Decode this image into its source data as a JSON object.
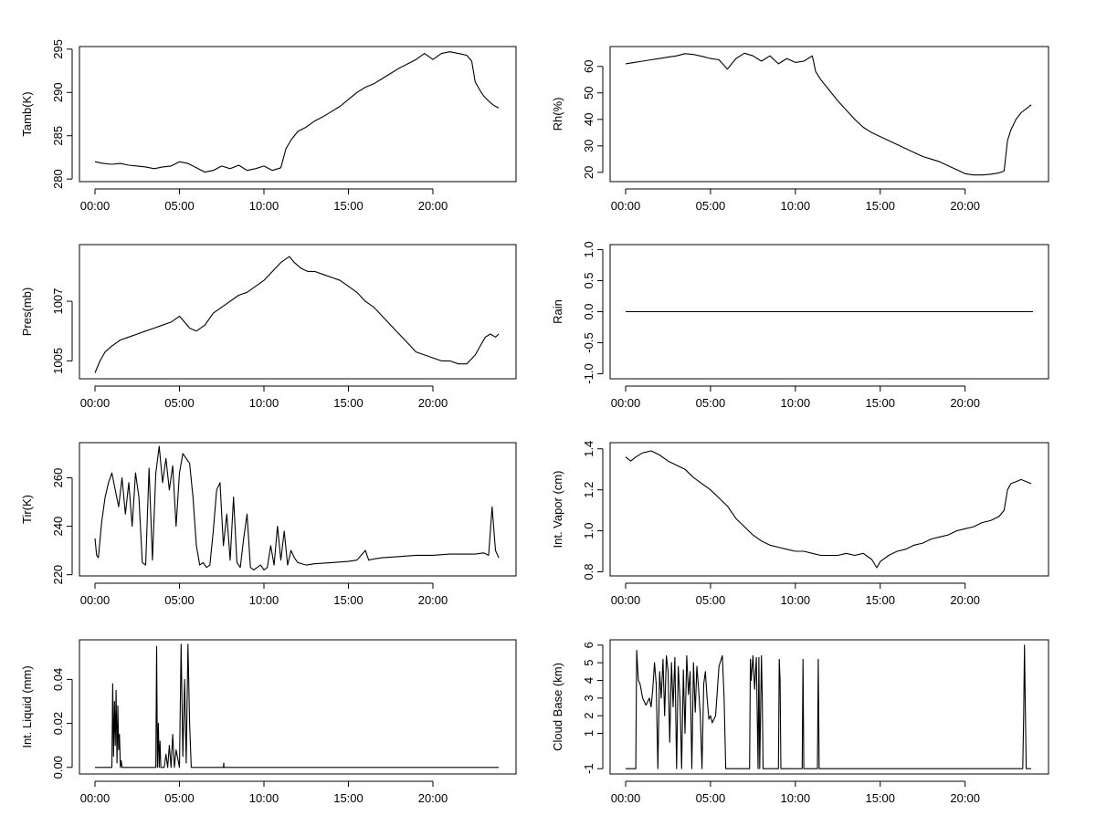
{
  "chart_data": [
    {
      "type": "line",
      "ylabel": "Tamb(K)",
      "xlabel": "",
      "xticks": [
        "00:00",
        "05:00",
        "10:00",
        "15:00",
        "20:00"
      ],
      "yticks": [
        280,
        285,
        290,
        295
      ],
      "ylim": [
        279.7,
        295.3
      ],
      "series": [
        {
          "x": [
            0.0,
            0.5,
            1.0,
            1.5,
            2.0,
            2.5,
            3.0,
            3.5,
            4.0,
            4.5,
            5.0,
            5.5,
            6.0,
            6.5,
            7.0,
            7.5,
            8.0,
            8.5,
            9.0,
            9.5,
            10.0,
            10.5,
            11.0,
            11.3,
            11.6,
            12.0,
            12.5,
            13.0,
            13.5,
            14.0,
            14.5,
            15.0,
            15.5,
            16.0,
            16.5,
            17.0,
            17.5,
            18.0,
            18.5,
            19.0,
            19.5,
            20.0,
            20.5,
            21.0,
            21.5,
            22.0,
            22.3,
            22.5,
            22.8,
            23.0,
            23.3,
            23.6,
            23.9
          ],
          "values": [
            282.0,
            281.8,
            281.7,
            281.8,
            281.6,
            281.5,
            281.4,
            281.2,
            281.4,
            281.5,
            282.0,
            281.8,
            281.3,
            280.8,
            281.0,
            281.5,
            281.2,
            281.6,
            281.0,
            281.2,
            281.5,
            281.0,
            281.3,
            283.5,
            284.5,
            285.5,
            286.0,
            286.7,
            287.2,
            287.8,
            288.4,
            289.2,
            290.0,
            290.6,
            291.0,
            291.6,
            292.2,
            292.8,
            293.3,
            293.8,
            294.5,
            293.8,
            294.5,
            294.7,
            294.5,
            294.3,
            293.6,
            291.2,
            290.2,
            289.6,
            289.0,
            288.5,
            288.2
          ]
        }
      ]
    },
    {
      "type": "line",
      "ylabel": "Rh(%)",
      "xlabel": "",
      "xticks": [
        "00:00",
        "05:00",
        "10:00",
        "15:00",
        "20:00"
      ],
      "yticks": [
        20,
        30,
        40,
        50,
        60
      ],
      "ylim": [
        16.5,
        67.5
      ],
      "series": [
        {
          "x": [
            0.0,
            0.5,
            1.0,
            1.5,
            2.0,
            2.5,
            3.0,
            3.5,
            4.0,
            4.5,
            5.0,
            5.5,
            6.0,
            6.5,
            7.0,
            7.5,
            8.0,
            8.5,
            9.0,
            9.5,
            10.0,
            10.5,
            11.0,
            11.2,
            11.5,
            12.0,
            12.5,
            13.0,
            13.5,
            14.0,
            14.5,
            15.0,
            15.5,
            16.0,
            16.5,
            17.0,
            17.5,
            18.0,
            18.5,
            19.0,
            19.5,
            20.0,
            20.5,
            21.0,
            21.5,
            22.0,
            22.3,
            22.5,
            22.7,
            23.0,
            23.3,
            23.6,
            23.9
          ],
          "values": [
            61.0,
            61.5,
            62.0,
            62.5,
            63.0,
            63.5,
            64.0,
            64.8,
            64.5,
            63.8,
            63.0,
            62.5,
            59.0,
            63.0,
            65.0,
            64.0,
            62.0,
            64.0,
            61.0,
            63.0,
            61.5,
            62.0,
            64.0,
            58.0,
            55.0,
            51.0,
            47.0,
            43.5,
            40.0,
            37.0,
            35.0,
            33.5,
            32.0,
            30.5,
            29.0,
            27.5,
            26.0,
            25.0,
            24.0,
            22.5,
            21.0,
            19.5,
            19.0,
            19.0,
            19.3,
            19.8,
            20.5,
            32.0,
            36.0,
            40.0,
            42.5,
            44.0,
            45.5
          ]
        }
      ]
    },
    {
      "type": "line",
      "ylabel": "Pres(mb)",
      "xlabel": "",
      "xticks": [
        "00:00",
        "05:00",
        "10:00",
        "15:00",
        "20:00"
      ],
      "yticks": [
        1005,
        1007
      ],
      "ylim": [
        1004.4,
        1008.9
      ],
      "series": [
        {
          "x": [
            0.0,
            0.3,
            0.6,
            1.0,
            1.5,
            2.0,
            2.5,
            3.0,
            3.5,
            4.0,
            4.5,
            5.0,
            5.3,
            5.6,
            6.0,
            6.5,
            7.0,
            7.5,
            8.0,
            8.5,
            9.0,
            9.5,
            10.0,
            10.5,
            11.0,
            11.5,
            11.8,
            12.2,
            12.6,
            13.0,
            13.5,
            14.0,
            14.5,
            15.0,
            15.5,
            16.0,
            16.5,
            17.0,
            17.5,
            18.0,
            18.5,
            19.0,
            19.5,
            20.0,
            20.5,
            21.0,
            21.5,
            22.0,
            22.5,
            22.8,
            23.1,
            23.4,
            23.7,
            23.9
          ],
          "values": [
            1004.6,
            1005.0,
            1005.3,
            1005.5,
            1005.7,
            1005.8,
            1005.9,
            1006.0,
            1006.1,
            1006.2,
            1006.3,
            1006.5,
            1006.3,
            1006.1,
            1006.0,
            1006.2,
            1006.6,
            1006.8,
            1007.0,
            1007.2,
            1007.3,
            1007.5,
            1007.7,
            1008.0,
            1008.3,
            1008.5,
            1008.3,
            1008.1,
            1008.0,
            1008.0,
            1007.9,
            1007.8,
            1007.7,
            1007.5,
            1007.3,
            1007.0,
            1006.8,
            1006.5,
            1006.2,
            1005.9,
            1005.6,
            1005.3,
            1005.2,
            1005.1,
            1005.0,
            1005.0,
            1004.9,
            1004.9,
            1005.2,
            1005.5,
            1005.8,
            1005.9,
            1005.8,
            1005.9
          ]
        }
      ]
    },
    {
      "type": "line",
      "ylabel": "Rain",
      "xlabel": "",
      "xticks": [
        "00:00",
        "05:00",
        "10:00",
        "15:00",
        "20:00"
      ],
      "yticks": [
        "-1.0",
        "-0.5",
        "0.0",
        "0.5",
        "1.0"
      ],
      "ylim": [
        -1.08,
        1.08
      ],
      "series": [
        {
          "x": [
            0.0,
            24.0
          ],
          "values": [
            0.0,
            0.0
          ]
        }
      ]
    },
    {
      "type": "line",
      "ylabel": "Tir(K)",
      "xlabel": "",
      "xticks": [
        "00:00",
        "05:00",
        "10:00",
        "15:00",
        "20:00"
      ],
      "yticks": [
        220,
        240,
        260
      ],
      "ylim": [
        219.5,
        274.5
      ],
      "series": [
        {
          "x": [
            0.0,
            0.1,
            0.2,
            0.4,
            0.6,
            0.8,
            1.0,
            1.2,
            1.4,
            1.6,
            1.8,
            2.0,
            2.2,
            2.4,
            2.6,
            2.8,
            3.0,
            3.2,
            3.4,
            3.6,
            3.8,
            4.0,
            4.2,
            4.4,
            4.6,
            4.8,
            5.0,
            5.2,
            5.4,
            5.6,
            5.8,
            6.0,
            6.2,
            6.4,
            6.6,
            6.8,
            7.0,
            7.2,
            7.4,
            7.6,
            7.8,
            8.0,
            8.2,
            8.4,
            8.6,
            8.8,
            9.0,
            9.2,
            9.4,
            9.6,
            9.8,
            10.0,
            10.2,
            10.4,
            10.6,
            10.8,
            11.0,
            11.2,
            11.4,
            11.6,
            11.8,
            12.0,
            12.5,
            13.0,
            14.0,
            15.0,
            15.5,
            16.0,
            16.2,
            16.5,
            17.0,
            18.0,
            19.0,
            20.0,
            21.0,
            22.0,
            22.5,
            23.0,
            23.3,
            23.5,
            23.7,
            23.9
          ],
          "values": [
            235.0,
            228.0,
            227.0,
            242.0,
            252.0,
            258.0,
            262.0,
            255.0,
            248.0,
            260.0,
            245.0,
            258.0,
            240.0,
            262.0,
            252.0,
            225.0,
            224.0,
            264.0,
            226.0,
            262.0,
            273.0,
            258.0,
            268.0,
            255.0,
            265.0,
            240.0,
            262.0,
            270.0,
            268.0,
            266.0,
            252.0,
            232.0,
            224.0,
            225.0,
            223.0,
            224.0,
            238.0,
            255.0,
            258.0,
            232.0,
            245.0,
            226.0,
            252.0,
            225.0,
            223.0,
            235.0,
            245.0,
            223.0,
            222.0,
            223.0,
            224.0,
            222.0,
            223.0,
            232.0,
            224.0,
            240.0,
            226.0,
            238.0,
            224.0,
            230.0,
            227.0,
            225.0,
            224.0,
            224.5,
            225.0,
            225.5,
            226.0,
            230.0,
            226.0,
            226.5,
            227.0,
            227.5,
            228.0,
            228.0,
            228.5,
            228.5,
            228.5,
            229.0,
            228.0,
            248.0,
            230.0,
            227.0
          ]
        }
      ]
    },
    {
      "type": "line",
      "ylabel": "Int. Vapor (cm)",
      "xlabel": "",
      "xticks": [
        "00:00",
        "05:00",
        "10:00",
        "15:00",
        "20:00"
      ],
      "yticks": [
        "0.8",
        "1.0",
        "1.2",
        "1.4"
      ],
      "ylim": [
        0.78,
        1.43
      ],
      "series": [
        {
          "x": [
            0.0,
            0.3,
            0.6,
            1.0,
            1.5,
            2.0,
            2.5,
            3.0,
            3.5,
            4.0,
            4.5,
            5.0,
            5.5,
            6.0,
            6.5,
            7.0,
            7.5,
            8.0,
            8.5,
            9.0,
            9.5,
            10.0,
            10.5,
            11.0,
            11.5,
            12.0,
            12.5,
            13.0,
            13.5,
            14.0,
            14.5,
            14.8,
            15.0,
            15.5,
            16.0,
            16.5,
            17.0,
            17.5,
            18.0,
            18.5,
            19.0,
            19.5,
            20.0,
            20.5,
            21.0,
            21.5,
            22.0,
            22.3,
            22.5,
            22.7,
            23.0,
            23.3,
            23.6,
            23.9
          ],
          "values": [
            1.36,
            1.34,
            1.36,
            1.38,
            1.39,
            1.37,
            1.34,
            1.32,
            1.3,
            1.26,
            1.23,
            1.2,
            1.16,
            1.12,
            1.06,
            1.02,
            0.98,
            0.95,
            0.93,
            0.92,
            0.91,
            0.9,
            0.9,
            0.89,
            0.88,
            0.88,
            0.88,
            0.89,
            0.88,
            0.89,
            0.86,
            0.82,
            0.85,
            0.88,
            0.9,
            0.91,
            0.93,
            0.94,
            0.96,
            0.97,
            0.98,
            1.0,
            1.01,
            1.02,
            1.04,
            1.05,
            1.07,
            1.1,
            1.2,
            1.23,
            1.24,
            1.25,
            1.24,
            1.23
          ]
        }
      ]
    },
    {
      "type": "line",
      "ylabel": "Int. Liquid (mm)",
      "xlabel": "",
      "xticks": [
        "00:00",
        "05:00",
        "10:00",
        "15:00",
        "20:00"
      ],
      "yticks": [
        "0.00",
        "0.02",
        "0.04"
      ],
      "ylim": [
        -0.003,
        0.058
      ],
      "series": [
        {
          "x": [
            0.0,
            1.0,
            1.05,
            1.1,
            1.15,
            1.2,
            1.25,
            1.3,
            1.35,
            1.4,
            1.45,
            1.5,
            1.55,
            1.6,
            3.6,
            3.65,
            3.7,
            3.75,
            3.8,
            3.85,
            3.9,
            4.0,
            4.1,
            4.2,
            4.3,
            4.4,
            4.5,
            4.6,
            4.7,
            4.8,
            5.0,
            5.1,
            5.2,
            5.3,
            5.4,
            5.5,
            5.6,
            5.7,
            5.75,
            7.6,
            7.62,
            7.64,
            23.9
          ],
          "values": [
            0.0,
            0.0,
            0.038,
            0.005,
            0.03,
            0.01,
            0.035,
            0.002,
            0.028,
            0.008,
            0.015,
            0.0,
            0.003,
            0.0,
            0.0,
            0.055,
            0.0,
            0.02,
            0.0,
            0.012,
            0.0,
            0.0,
            0.0,
            0.006,
            0.0,
            0.01,
            0.0,
            0.015,
            0.0,
            0.008,
            0.0,
            0.056,
            0.005,
            0.04,
            0.002,
            0.056,
            0.02,
            0.0,
            0.0,
            0.0,
            0.002,
            0.0,
            0.0
          ]
        }
      ]
    },
    {
      "type": "line",
      "ylabel": "Cloud Base (km)",
      "xlabel": "",
      "xticks": [
        "00:00",
        "05:00",
        "10:00",
        "15:00",
        "20:00"
      ],
      "yticks": [
        -1,
        1,
        2,
        3,
        4,
        5,
        6
      ],
      "ylim": [
        -1.3,
        6.3
      ],
      "series": [
        {
          "x": [
            0.0,
            0.6,
            0.65,
            0.75,
            0.85,
            1.0,
            1.2,
            1.4,
            1.5,
            1.6,
            1.7,
            1.8,
            1.9,
            2.0,
            2.1,
            2.2,
            2.3,
            2.4,
            2.5,
            2.6,
            2.7,
            2.8,
            2.9,
            3.0,
            3.1,
            3.2,
            3.3,
            3.4,
            3.5,
            3.6,
            3.7,
            3.8,
            3.9,
            4.0,
            4.1,
            4.2,
            4.3,
            4.4,
            4.5,
            4.6,
            4.7,
            4.8,
            4.9,
            5.0,
            5.1,
            5.3,
            5.5,
            5.7,
            5.8,
            5.9,
            6.0,
            6.1,
            7.3,
            7.35,
            7.4,
            7.5,
            7.6,
            7.7,
            7.8,
            7.85,
            7.9,
            8.0,
            8.05,
            8.1,
            8.15,
            9.0,
            9.05,
            9.1,
            9.15,
            10.4,
            10.45,
            10.5,
            11.3,
            11.35,
            11.4,
            23.4,
            23.45,
            23.5,
            23.55,
            23.6,
            23.9
          ],
          "values": [
            -1.0,
            -1.0,
            5.7,
            4.0,
            3.8,
            3.0,
            2.6,
            3.0,
            2.5,
            3.5,
            5.0,
            3.8,
            -1.0,
            4.5,
            3.0,
            5.2,
            2.0,
            5.4,
            4.5,
            0.5,
            5.0,
            2.5,
            5.3,
            -1.0,
            4.8,
            3.0,
            -1.0,
            4.6,
            1.0,
            5.4,
            3.2,
            4.5,
            -1.0,
            5.0,
            2.2,
            4.8,
            3.5,
            2.0,
            -1.0,
            3.8,
            4.5,
            3.0,
            1.8,
            2.0,
            1.6,
            2.0,
            4.8,
            5.4,
            3.0,
            -1.0,
            -1.0,
            -1.0,
            -1.0,
            5.2,
            4.0,
            5.4,
            3.5,
            5.3,
            -1.0,
            5.3,
            -1.0,
            5.4,
            3.0,
            -1.0,
            -1.0,
            -1.0,
            5.2,
            4.0,
            -1.0,
            -1.0,
            5.2,
            -1.0,
            -1.0,
            5.2,
            -1.0,
            -1.0,
            2.0,
            6.0,
            2.5,
            -1.0,
            -1.0
          ]
        }
      ]
    }
  ]
}
